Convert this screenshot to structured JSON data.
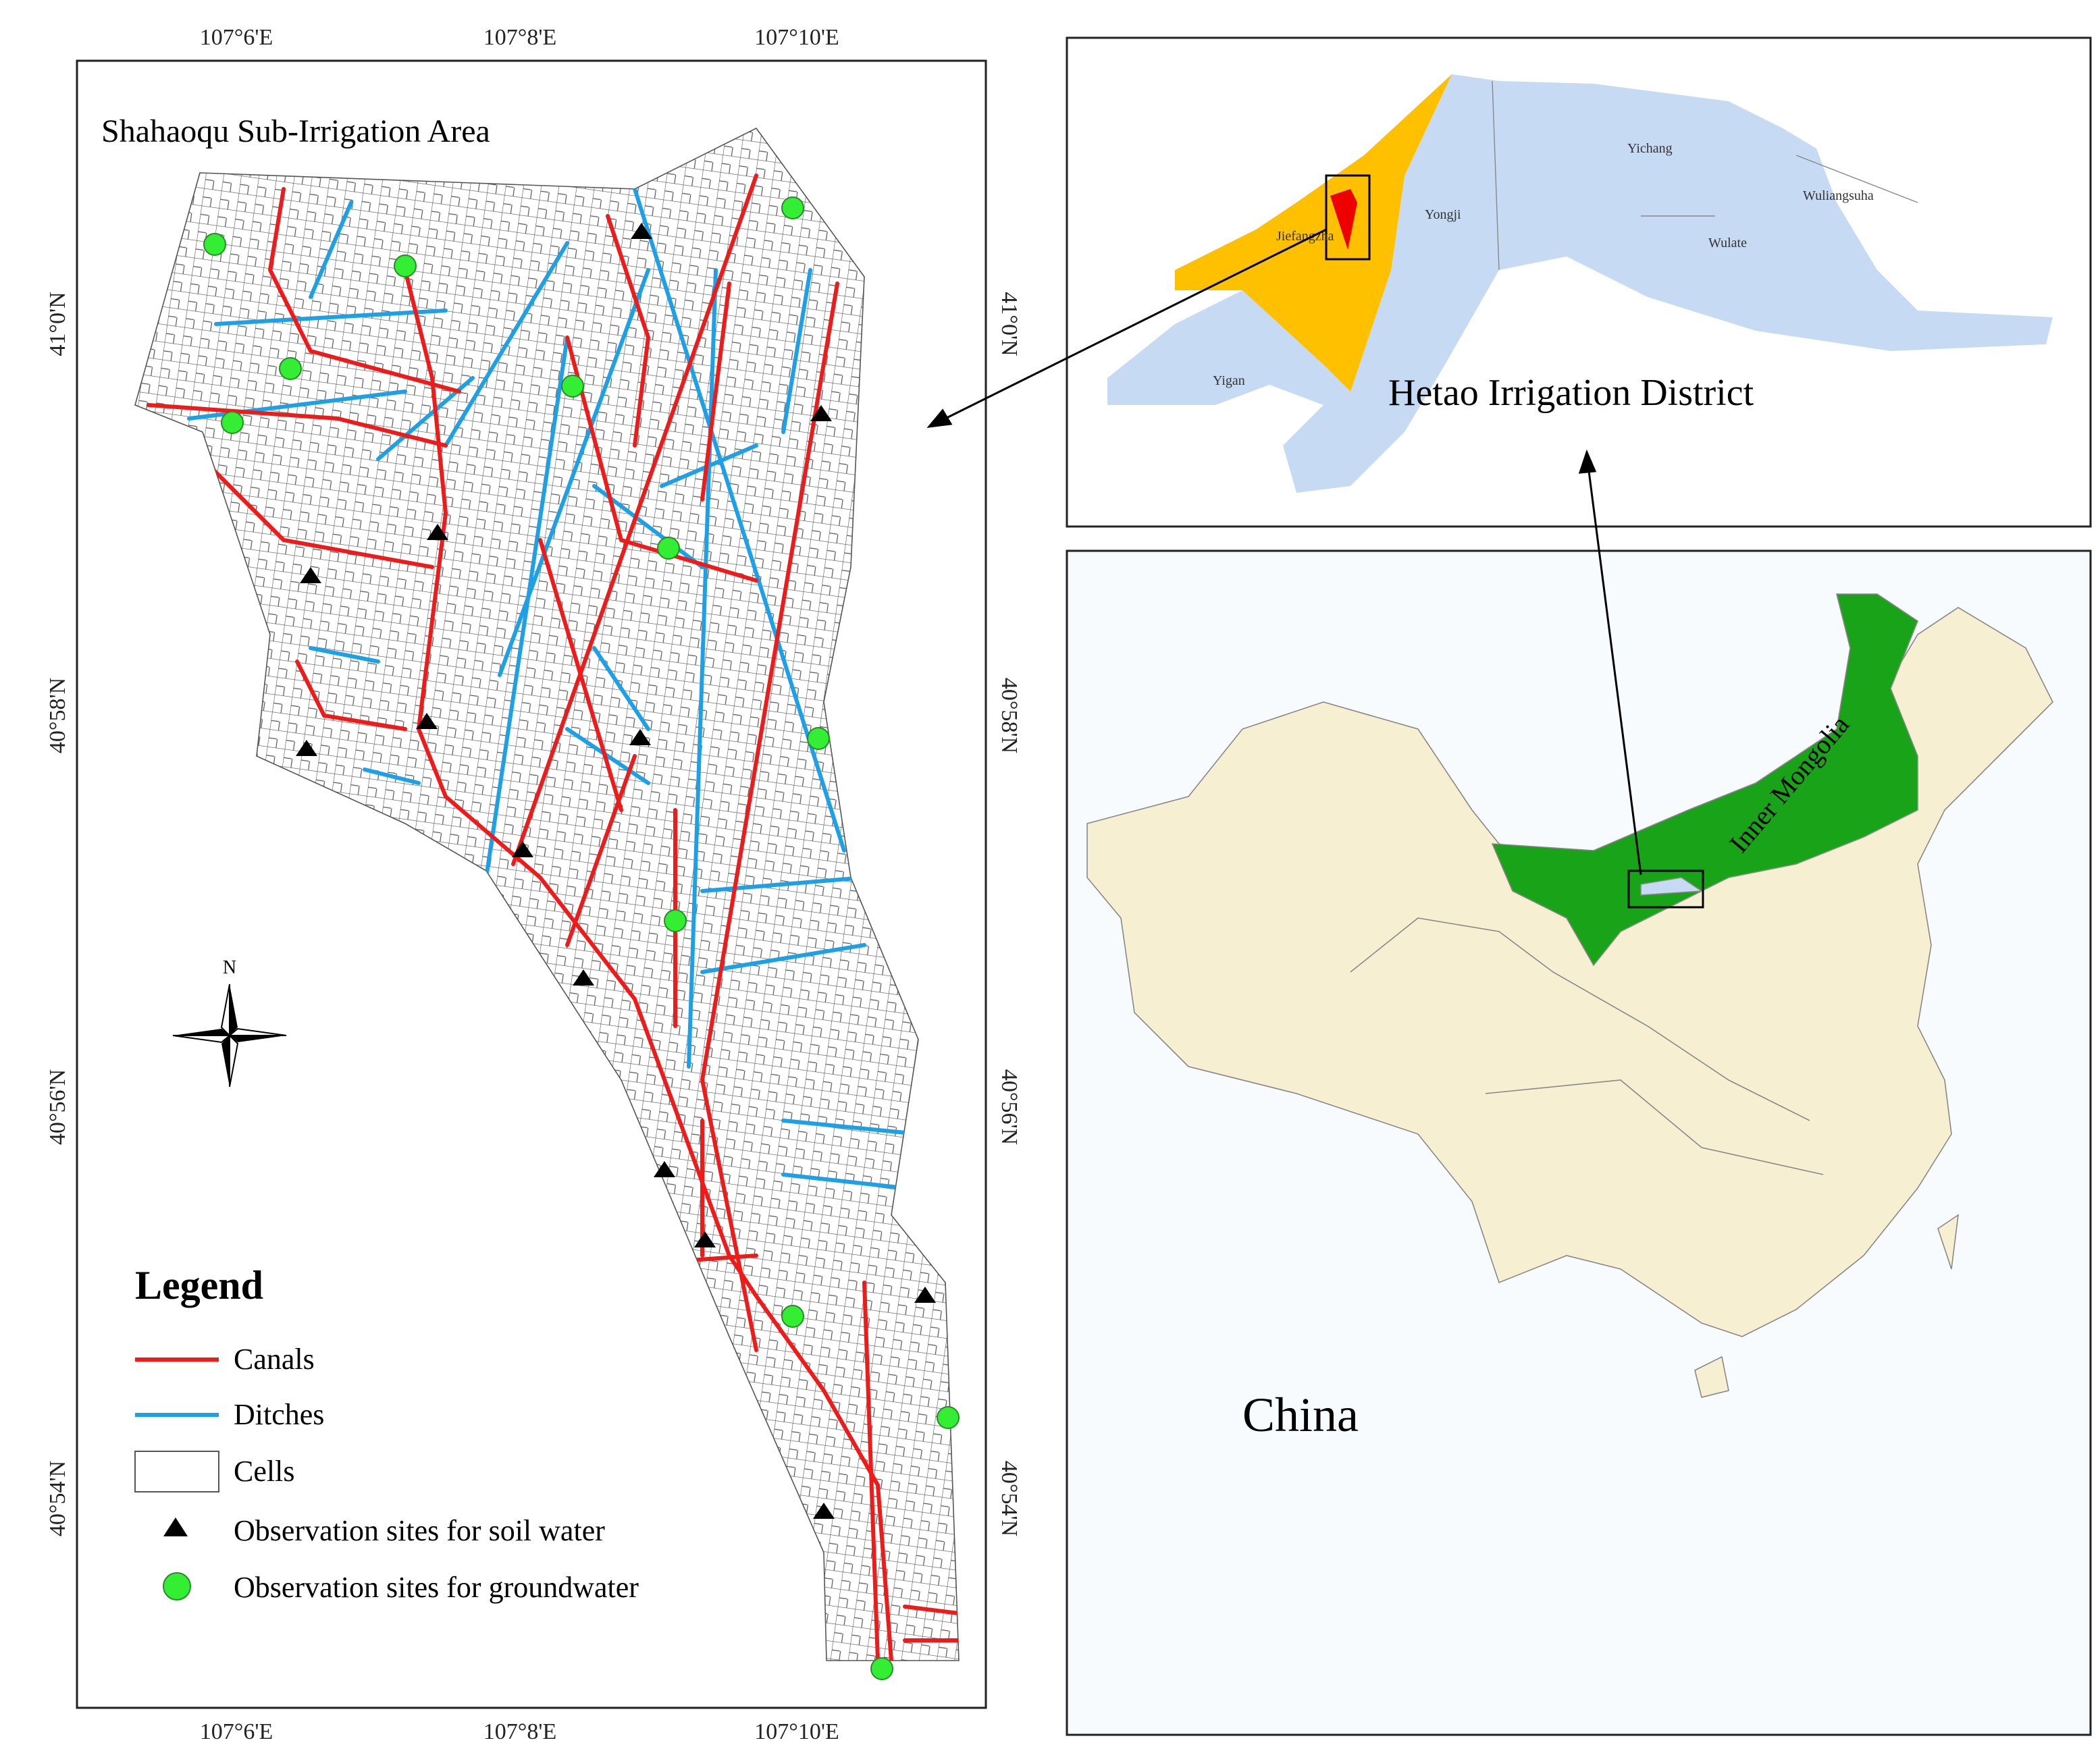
{
  "left_panel": {
    "title": "Shahaoqu Sub-Irrigation Area",
    "lon_labels": [
      "107°6'E",
      "107°8'E",
      "107°10'E"
    ],
    "lat_labels": [
      "41°0'N",
      "40°58'N",
      "40°56'N",
      "40°54'N"
    ],
    "north": "N",
    "legend": {
      "title": "Legend",
      "items": [
        "Canals",
        "Ditches",
        "Cells",
        "Observation sites for soil water",
        "Observation sites for groundwater"
      ]
    }
  },
  "hetao_panel": {
    "title": "Hetao Irrigation District",
    "districts": [
      "Yichang",
      "Wuliangsuha",
      "Yongji",
      "Jiefangzha",
      "Wulate",
      "Yigan"
    ]
  },
  "china_panel": {
    "country": "China",
    "region": "Inner Mongolia"
  }
}
